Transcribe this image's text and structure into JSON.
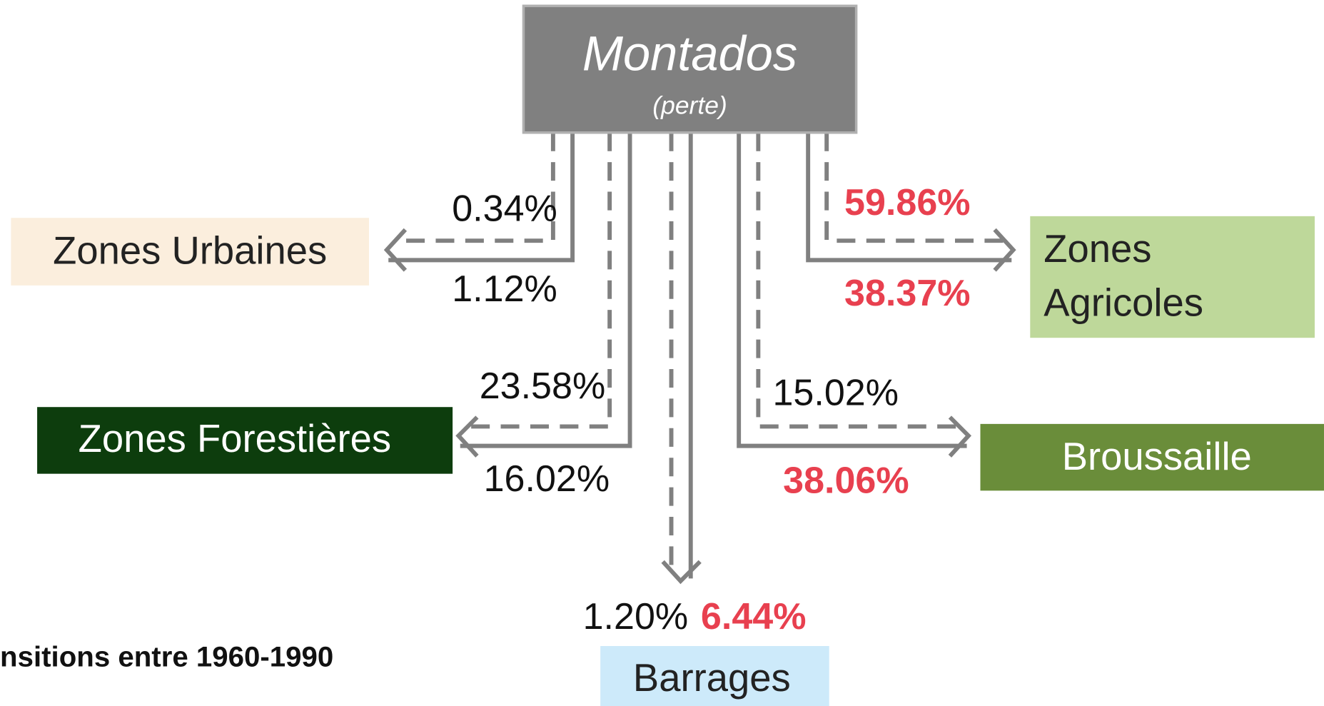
{
  "source": {
    "title": "Montados",
    "subtitle": "(perte)"
  },
  "nodes": [
    {
      "label": [
        "Zones Urbaines"
      ],
      "dashed_value": "0.34%",
      "solid_value": "1.12%"
    },
    {
      "label": [
        "Zones",
        "Agricoles"
      ],
      "dashed_value": "59.86%",
      "solid_value": "38.37%"
    },
    {
      "label": [
        "Zones Forestières"
      ],
      "dashed_value": "23.58%",
      "solid_value": "16.02%"
    },
    {
      "label": [
        "Broussaille"
      ],
      "dashed_value": "15.02%",
      "solid_value": "38.06%"
    },
    {
      "label": [
        "Barrages"
      ],
      "dashed_value": "1.20%",
      "solid_value": "6.44%"
    }
  ],
  "caption": "nsitions entre 1960-1990"
}
